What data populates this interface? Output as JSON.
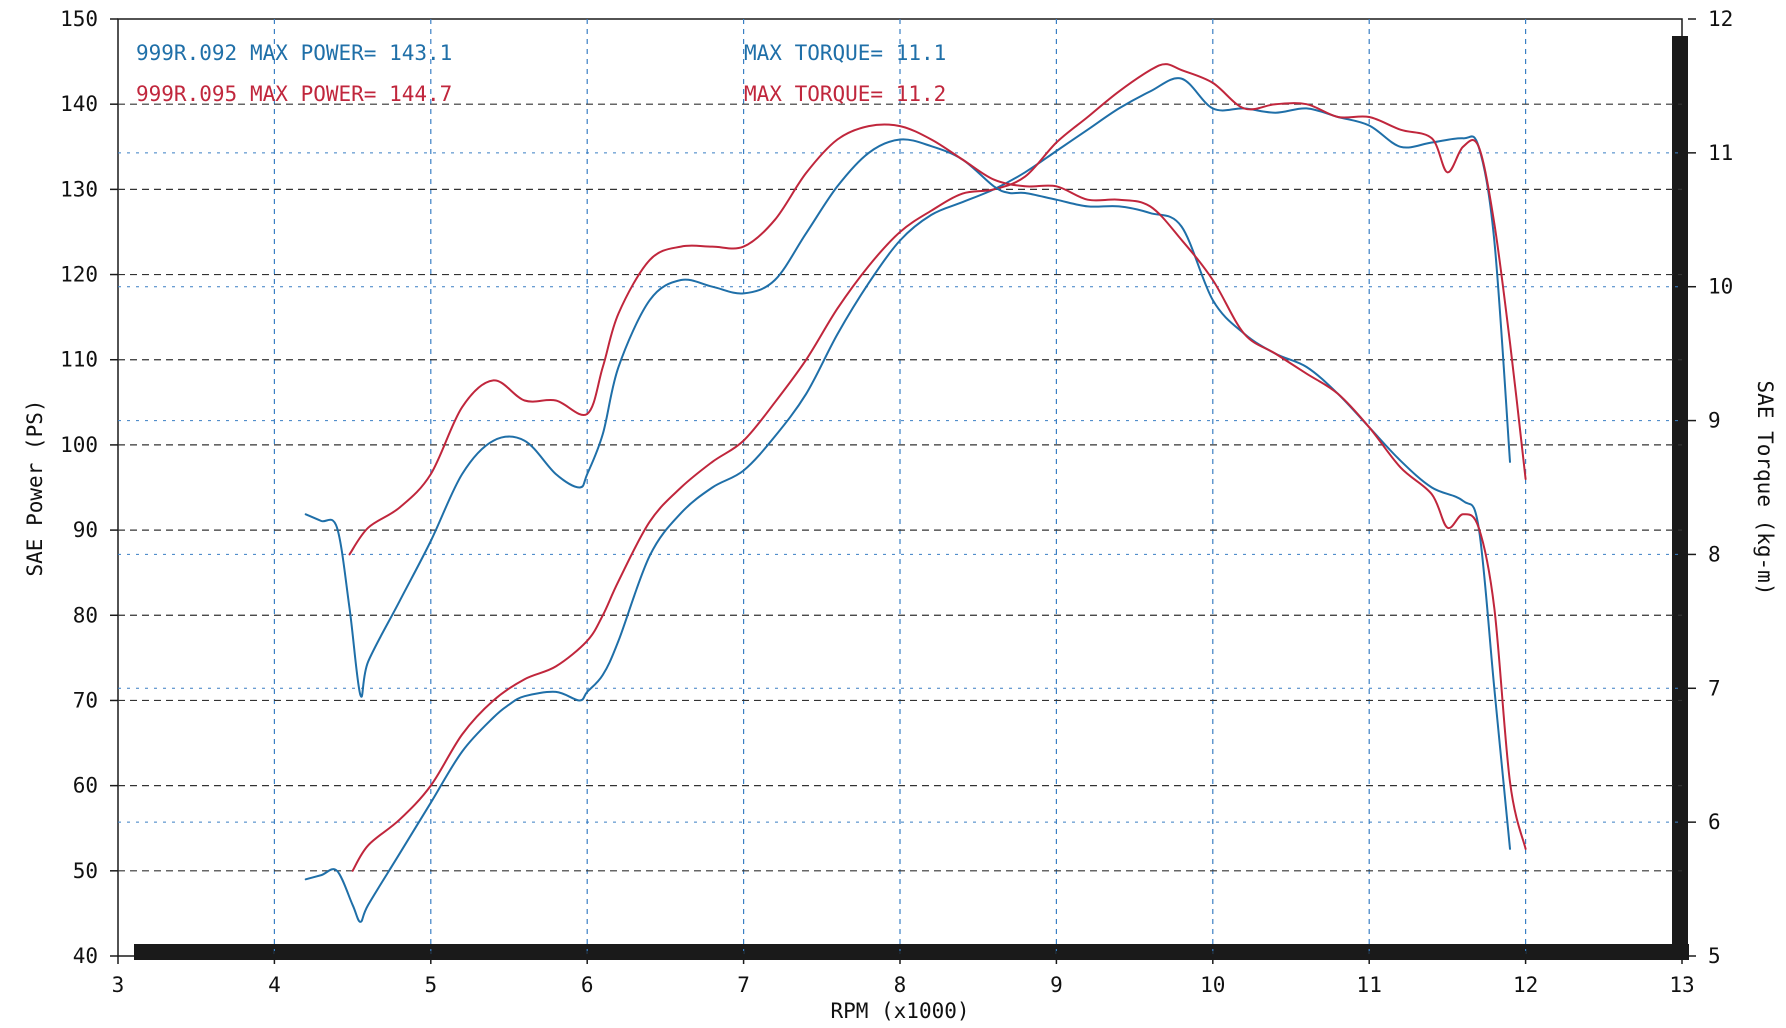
{
  "chart_data": {
    "type": "line",
    "xlabel": "RPM (x1000)",
    "ylabel": "SAE Power (PS)",
    "y2label": "SAE Torque (kg-m)",
    "xlim": [
      3,
      13
    ],
    "ylim": [
      40,
      150
    ],
    "y2lim": [
      5,
      12
    ],
    "x_ticks": [
      "3",
      "4",
      "5",
      "6",
      "7",
      "8",
      "9",
      "10",
      "11",
      "12",
      "13"
    ],
    "y_ticks": [
      "40",
      "50",
      "60",
      "70",
      "80",
      "90",
      "100",
      "110",
      "120",
      "130",
      "140",
      "150"
    ],
    "y2_ticks": [
      "5",
      "6",
      "7",
      "8",
      "9",
      "10",
      "11",
      "12"
    ],
    "grid": true,
    "legend": [
      {
        "run": "999R.092",
        "power_label": "MAX POWER= 143.1",
        "torque_label": "MAX TORQUE= 11.1",
        "color": "#1f6fa8"
      },
      {
        "run": "999R.095",
        "power_label": "MAX POWER= 144.7",
        "torque_label": "MAX TORQUE= 11.2",
        "color": "#c0263c"
      }
    ],
    "series": [
      {
        "name": "999R.092",
        "measure": "power",
        "axis": "left",
        "color": "#1f6fa8",
        "x": [
          4.2,
          4.3,
          4.4,
          4.5,
          4.55,
          4.6,
          4.8,
          5.0,
          5.2,
          5.4,
          5.5,
          5.6,
          5.8,
          5.95,
          6.0,
          6.1,
          6.2,
          6.4,
          6.6,
          6.8,
          7.0,
          7.2,
          7.4,
          7.6,
          7.8,
          8.0,
          8.2,
          8.4,
          8.6,
          8.8,
          9.0,
          9.2,
          9.4,
          9.6,
          9.8,
          10.0,
          10.2,
          10.4,
          10.6,
          10.8,
          11.0,
          11.2,
          11.4,
          11.6,
          11.7,
          11.8,
          11.9
        ],
        "y": [
          49,
          49.5,
          50,
          46,
          44,
          46,
          52,
          58,
          64,
          68,
          69.5,
          70.5,
          71,
          70,
          71,
          73,
          77,
          87,
          92,
          95,
          97,
          101,
          106,
          113,
          119,
          124,
          127,
          128.5,
          130,
          132,
          134.5,
          137,
          139.5,
          141.5,
          143,
          139.5,
          139.5,
          139,
          139.5,
          138.5,
          137.5,
          135,
          135.5,
          136,
          135,
          124,
          98
        ]
      },
      {
        "name": "999R.095",
        "measure": "power",
        "axis": "left",
        "color": "#c0263c",
        "x": [
          4.5,
          4.6,
          4.8,
          5.0,
          5.2,
          5.4,
          5.6,
          5.8,
          6.0,
          6.1,
          6.2,
          6.4,
          6.6,
          6.8,
          7.0,
          7.2,
          7.4,
          7.6,
          7.8,
          8.0,
          8.2,
          8.4,
          8.6,
          8.8,
          9.0,
          9.2,
          9.4,
          9.6,
          9.7,
          9.8,
          10.0,
          10.2,
          10.4,
          10.6,
          10.8,
          11.0,
          11.2,
          11.4,
          11.5,
          11.6,
          11.7,
          11.8,
          11.9,
          12.0
        ],
        "y": [
          50,
          53,
          56,
          60,
          66,
          70,
          72.5,
          74,
          77,
          80,
          84,
          91,
          95,
          98,
          100.5,
          105,
          110,
          116,
          121,
          125,
          127.5,
          129.5,
          130,
          131.5,
          135.5,
          138.5,
          141.5,
          144,
          144.7,
          144,
          142.5,
          139.5,
          140,
          140,
          138.5,
          138.5,
          137,
          136,
          132,
          135,
          135,
          126,
          112,
          96
        ]
      },
      {
        "name": "999R.092",
        "measure": "torque",
        "axis": "right",
        "color": "#1f6fa8",
        "x": [
          4.2,
          4.3,
          4.4,
          4.48,
          4.55,
          4.6,
          4.8,
          5.0,
          5.2,
          5.4,
          5.6,
          5.8,
          5.95,
          6.0,
          6.1,
          6.2,
          6.4,
          6.6,
          6.8,
          7.0,
          7.2,
          7.4,
          7.6,
          7.8,
          8.0,
          8.2,
          8.4,
          8.6,
          8.7,
          8.8,
          9.0,
          9.2,
          9.4,
          9.6,
          9.8,
          10.0,
          10.2,
          10.4,
          10.6,
          10.8,
          11.0,
          11.2,
          11.4,
          11.6,
          11.7,
          11.8,
          11.9
        ],
        "y": [
          8.3,
          8.25,
          8.2,
          7.6,
          6.95,
          7.2,
          7.65,
          8.1,
          8.6,
          8.85,
          8.85,
          8.6,
          8.5,
          8.6,
          8.9,
          9.4,
          9.9,
          10.05,
          10.0,
          9.95,
          10.05,
          10.4,
          10.75,
          11.0,
          11.1,
          11.05,
          10.95,
          10.75,
          10.7,
          10.7,
          10.65,
          10.6,
          10.6,
          10.55,
          10.45,
          9.9,
          9.65,
          9.5,
          9.4,
          9.2,
          8.95,
          8.7,
          8.5,
          8.4,
          8.2,
          7.0,
          5.8
        ]
      },
      {
        "name": "999R.095",
        "measure": "torque",
        "axis": "right",
        "color": "#c0263c",
        "x": [
          4.48,
          4.6,
          4.8,
          5.0,
          5.2,
          5.4,
          5.6,
          5.8,
          6.0,
          6.1,
          6.2,
          6.4,
          6.6,
          6.8,
          7.0,
          7.2,
          7.4,
          7.6,
          7.8,
          8.0,
          8.2,
          8.4,
          8.6,
          8.8,
          9.0,
          9.2,
          9.4,
          9.6,
          9.8,
          10.0,
          10.2,
          10.4,
          10.6,
          10.8,
          11.0,
          11.2,
          11.4,
          11.5,
          11.6,
          11.7,
          11.8,
          11.9,
          12.0
        ],
        "y": [
          8.0,
          8.2,
          8.35,
          8.6,
          9.1,
          9.3,
          9.15,
          9.15,
          9.05,
          9.4,
          9.8,
          10.2,
          10.3,
          10.3,
          10.3,
          10.5,
          10.85,
          11.1,
          11.2,
          11.2,
          11.1,
          10.95,
          10.8,
          10.75,
          10.75,
          10.65,
          10.65,
          10.6,
          10.35,
          10.05,
          9.65,
          9.5,
          9.35,
          9.2,
          8.95,
          8.65,
          8.45,
          8.2,
          8.3,
          8.2,
          7.6,
          6.3,
          5.8
        ]
      }
    ]
  }
}
